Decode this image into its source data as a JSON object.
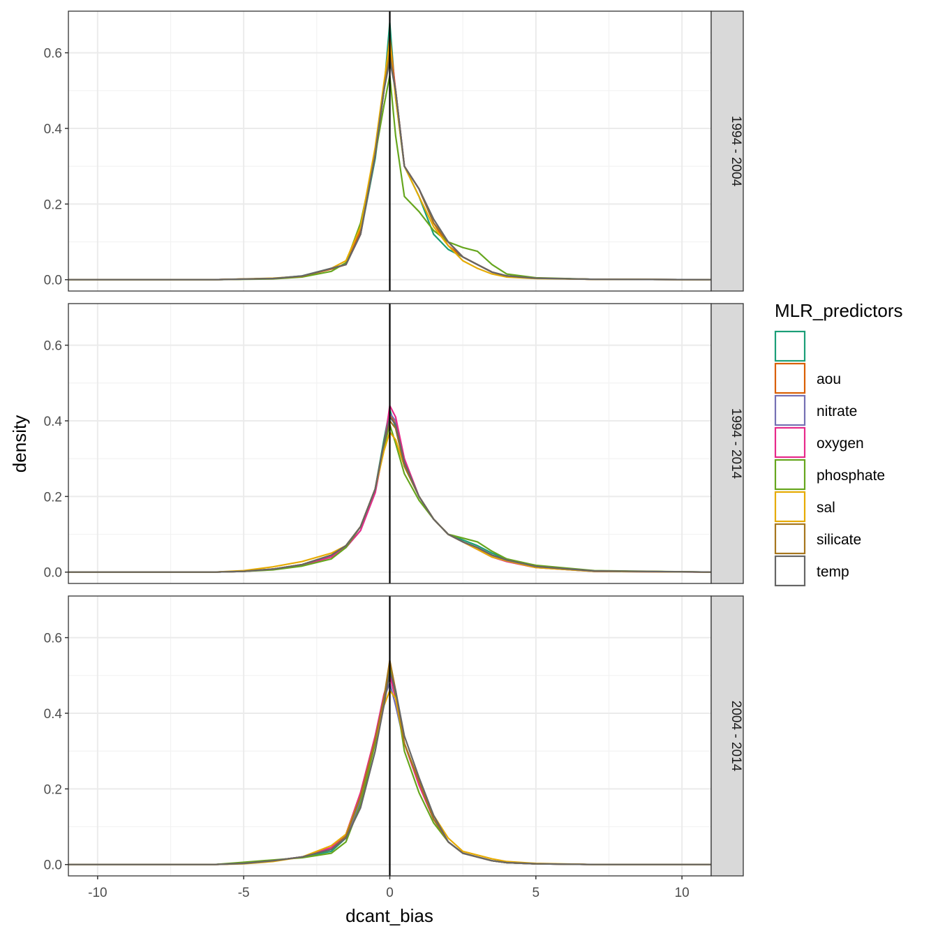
{
  "chart_data": {
    "type": "line",
    "subtype": "density",
    "xlabel": "dcant_bias",
    "ylabel": "density",
    "xlim": [
      -11,
      11
    ],
    "ylim": [
      -0.03,
      0.71
    ],
    "x_ticks": [
      -10,
      -5,
      0,
      5,
      10
    ],
    "x_tick_labels": [
      "-10",
      "-5",
      "0",
      "5",
      "10"
    ],
    "y_ticks": [
      0,
      0.2,
      0.4,
      0.6
    ],
    "y_tick_labels": [
      "0.0",
      "0.2",
      "0.4",
      "0.6"
    ],
    "vline_x": 0,
    "grid": true,
    "legend": {
      "title": "MLR_predictors",
      "position": "right",
      "entries": [
        {
          "label": "",
          "color": "#1B9E77"
        },
        {
          "label": "aou",
          "color": "#D95F02"
        },
        {
          "label": "nitrate",
          "color": "#7570B3"
        },
        {
          "label": "oxygen",
          "color": "#E7298A"
        },
        {
          "label": "phosphate",
          "color": "#66A61E"
        },
        {
          "label": "sal",
          "color": "#E6AB02"
        },
        {
          "label": "silicate",
          "color": "#A6761D"
        },
        {
          "label": "temp",
          "color": "#666666"
        }
      ]
    },
    "panels": [
      {
        "strip": "1994 - 2004",
        "x": [
          -11,
          -6,
          -4,
          -3,
          -2,
          -1.5,
          -1,
          -0.5,
          -0.2,
          0,
          0.2,
          0.5,
          1,
          1.5,
          2,
          2.5,
          3,
          3.5,
          4,
          5,
          7,
          11
        ],
        "series": [
          {
            "name": "",
            "values": [
              0,
              0,
              0.003,
              0.01,
              0.03,
              0.04,
              0.12,
              0.32,
              0.5,
              0.68,
              0.48,
              0.3,
              0.22,
              0.12,
              0.08,
              0.06,
              0.04,
              0.02,
              0.01,
              0.004,
              0.001,
              0
            ]
          },
          {
            "name": "aou",
            "values": [
              0,
              0,
              0.003,
              0.009,
              0.028,
              0.04,
              0.13,
              0.33,
              0.5,
              0.64,
              0.5,
              0.3,
              0.24,
              0.15,
              0.09,
              0.06,
              0.04,
              0.02,
              0.01,
              0.004,
              0.001,
              0
            ]
          },
          {
            "name": "nitrate",
            "values": [
              0,
              0,
              0.003,
              0.009,
              0.03,
              0.04,
              0.12,
              0.33,
              0.5,
              0.6,
              0.5,
              0.3,
              0.24,
              0.15,
              0.1,
              0.06,
              0.04,
              0.02,
              0.01,
              0.004,
              0.001,
              0
            ]
          },
          {
            "name": "oxygen",
            "values": [
              0,
              0,
              0.003,
              0.009,
              0.03,
              0.04,
              0.12,
              0.33,
              0.5,
              0.62,
              0.5,
              0.3,
              0.24,
              0.15,
              0.1,
              0.06,
              0.04,
              0.02,
              0.01,
              0.004,
              0.001,
              0
            ]
          },
          {
            "name": "phosphate",
            "values": [
              0,
              0,
              0.002,
              0.007,
              0.022,
              0.045,
              0.15,
              0.33,
              0.46,
              0.54,
              0.38,
              0.22,
              0.18,
              0.13,
              0.1,
              0.085,
              0.075,
              0.04,
              0.015,
              0.005,
              0.001,
              0
            ]
          },
          {
            "name": "sal",
            "values": [
              0,
              0,
              0.004,
              0.009,
              0.03,
              0.05,
              0.14,
              0.35,
              0.52,
              0.63,
              0.48,
              0.3,
              0.22,
              0.14,
              0.09,
              0.05,
              0.03,
              0.015,
              0.007,
              0.003,
              0.001,
              0
            ]
          },
          {
            "name": "silicate",
            "values": [
              0,
              0,
              0.003,
              0.009,
              0.03,
              0.04,
              0.12,
              0.33,
              0.5,
              0.6,
              0.5,
              0.3,
              0.24,
              0.15,
              0.1,
              0.06,
              0.04,
              0.02,
              0.01,
              0.004,
              0.001,
              0
            ]
          },
          {
            "name": "temp",
            "values": [
              0,
              0,
              0.003,
              0.01,
              0.03,
              0.04,
              0.12,
              0.33,
              0.5,
              0.58,
              0.5,
              0.3,
              0.24,
              0.16,
              0.1,
              0.06,
              0.04,
              0.02,
              0.01,
              0.004,
              0.001,
              0
            ]
          }
        ]
      },
      {
        "strip": "1994 - 2014",
        "x": [
          -11,
          -6,
          -5,
          -4,
          -3,
          -2,
          -1.5,
          -1,
          -0.5,
          -0.2,
          0,
          0.2,
          0.5,
          1,
          1.5,
          2,
          2.5,
          3,
          3.5,
          4,
          5,
          7,
          11
        ],
        "series": [
          {
            "name": "",
            "values": [
              0,
              0,
              0.002,
              0.008,
              0.02,
              0.045,
              0.07,
              0.12,
              0.22,
              0.35,
              0.43,
              0.38,
              0.28,
              0.2,
              0.14,
              0.1,
              0.085,
              0.07,
              0.05,
              0.035,
              0.015,
              0.003,
              0
            ]
          },
          {
            "name": "aou",
            "values": [
              0,
              0,
              0.002,
              0.008,
              0.02,
              0.045,
              0.07,
              0.12,
              0.22,
              0.34,
              0.42,
              0.39,
              0.29,
              0.2,
              0.14,
              0.1,
              0.08,
              0.06,
              0.045,
              0.032,
              0.015,
              0.003,
              0
            ]
          },
          {
            "name": "nitrate",
            "values": [
              0,
              0,
              0.002,
              0.007,
              0.018,
              0.04,
              0.065,
              0.11,
              0.21,
              0.33,
              0.42,
              0.4,
              0.29,
              0.2,
              0.14,
              0.1,
              0.08,
              0.06,
              0.04,
              0.028,
              0.012,
              0.002,
              0
            ]
          },
          {
            "name": "oxygen",
            "values": [
              0,
              0,
              0.002,
              0.007,
              0.018,
              0.04,
              0.065,
              0.11,
              0.21,
              0.33,
              0.44,
              0.41,
              0.3,
              0.2,
              0.14,
              0.1,
              0.08,
              0.06,
              0.04,
              0.028,
              0.012,
              0.002,
              0
            ]
          },
          {
            "name": "phosphate",
            "values": [
              0,
              0,
              0.002,
              0.006,
              0.016,
              0.035,
              0.065,
              0.12,
              0.22,
              0.33,
              0.39,
              0.34,
              0.26,
              0.19,
              0.14,
              0.1,
              0.09,
              0.08,
              0.055,
              0.035,
              0.018,
              0.004,
              0
            ]
          },
          {
            "name": "sal",
            "values": [
              0,
              0,
              0.004,
              0.014,
              0.028,
              0.05,
              0.07,
              0.12,
              0.22,
              0.32,
              0.37,
              0.35,
              0.28,
              0.2,
              0.14,
              0.1,
              0.08,
              0.06,
              0.04,
              0.03,
              0.012,
              0.002,
              0
            ]
          },
          {
            "name": "silicate",
            "values": [
              0,
              0,
              0.002,
              0.008,
              0.02,
              0.045,
              0.07,
              0.12,
              0.22,
              0.34,
              0.4,
              0.38,
              0.28,
              0.2,
              0.14,
              0.1,
              0.08,
              0.065,
              0.045,
              0.032,
              0.015,
              0.003,
              0
            ]
          },
          {
            "name": "temp",
            "values": [
              0,
              0,
              0.002,
              0.008,
              0.02,
              0.045,
              0.07,
              0.12,
              0.22,
              0.34,
              0.41,
              0.39,
              0.29,
              0.2,
              0.14,
              0.1,
              0.08,
              0.065,
              0.045,
              0.032,
              0.015,
              0.003,
              0
            ]
          }
        ]
      },
      {
        "strip": "2004 - 2014",
        "x": [
          -11,
          -6,
          -5,
          -4,
          -3,
          -2,
          -1.5,
          -1,
          -0.5,
          -0.2,
          0,
          0.2,
          0.5,
          1,
          1.5,
          2,
          2.5,
          3,
          3.5,
          4,
          5,
          7,
          11
        ],
        "series": [
          {
            "name": "",
            "values": [
              0,
              0,
              0.003,
              0.01,
              0.02,
              0.035,
              0.07,
              0.17,
              0.33,
              0.44,
              0.51,
              0.44,
              0.32,
              0.22,
              0.12,
              0.06,
              0.03,
              0.02,
              0.01,
              0.005,
              0.002,
              0,
              0
            ]
          },
          {
            "name": "aou",
            "values": [
              0,
              0,
              0.003,
              0.01,
              0.02,
              0.045,
              0.08,
              0.19,
              0.34,
              0.44,
              0.5,
              0.44,
              0.32,
              0.21,
              0.12,
              0.06,
              0.03,
              0.02,
              0.01,
              0.005,
              0.002,
              0,
              0
            ]
          },
          {
            "name": "nitrate",
            "values": [
              0,
              0,
              0.003,
              0.01,
              0.02,
              0.04,
              0.07,
              0.17,
              0.33,
              0.44,
              0.48,
              0.42,
              0.32,
              0.22,
              0.12,
              0.06,
              0.03,
              0.02,
              0.01,
              0.005,
              0.002,
              0,
              0
            ]
          },
          {
            "name": "oxygen",
            "values": [
              0,
              0,
              0.003,
              0.01,
              0.02,
              0.045,
              0.08,
              0.19,
              0.34,
              0.45,
              0.5,
              0.44,
              0.32,
              0.21,
              0.12,
              0.06,
              0.03,
              0.02,
              0.01,
              0.005,
              0.002,
              0,
              0
            ]
          },
          {
            "name": "phosphate",
            "values": [
              0,
              0,
              0.006,
              0.012,
              0.018,
              0.03,
              0.06,
              0.16,
              0.32,
              0.44,
              0.53,
              0.45,
              0.3,
              0.19,
              0.11,
              0.06,
              0.03,
              0.02,
              0.01,
              0.005,
              0.002,
              0,
              0
            ]
          },
          {
            "name": "sal",
            "values": [
              0,
              0,
              0.002,
              0.008,
              0.02,
              0.05,
              0.08,
              0.18,
              0.33,
              0.42,
              0.46,
              0.44,
              0.32,
              0.22,
              0.13,
              0.07,
              0.035,
              0.025,
              0.015,
              0.008,
              0.003,
              0,
              0
            ]
          },
          {
            "name": "silicate",
            "values": [
              0,
              0,
              0.003,
              0.01,
              0.02,
              0.04,
              0.075,
              0.18,
              0.33,
              0.44,
              0.54,
              0.46,
              0.32,
              0.22,
              0.12,
              0.06,
              0.03,
              0.02,
              0.01,
              0.005,
              0.002,
              0,
              0
            ]
          },
          {
            "name": "temp",
            "values": [
              0,
              0,
              0.003,
              0.01,
              0.02,
              0.04,
              0.07,
              0.15,
              0.3,
              0.42,
              0.51,
              0.46,
              0.34,
              0.23,
              0.13,
              0.06,
              0.03,
              0.02,
              0.01,
              0.005,
              0.002,
              0,
              0
            ]
          }
        ]
      }
    ]
  }
}
